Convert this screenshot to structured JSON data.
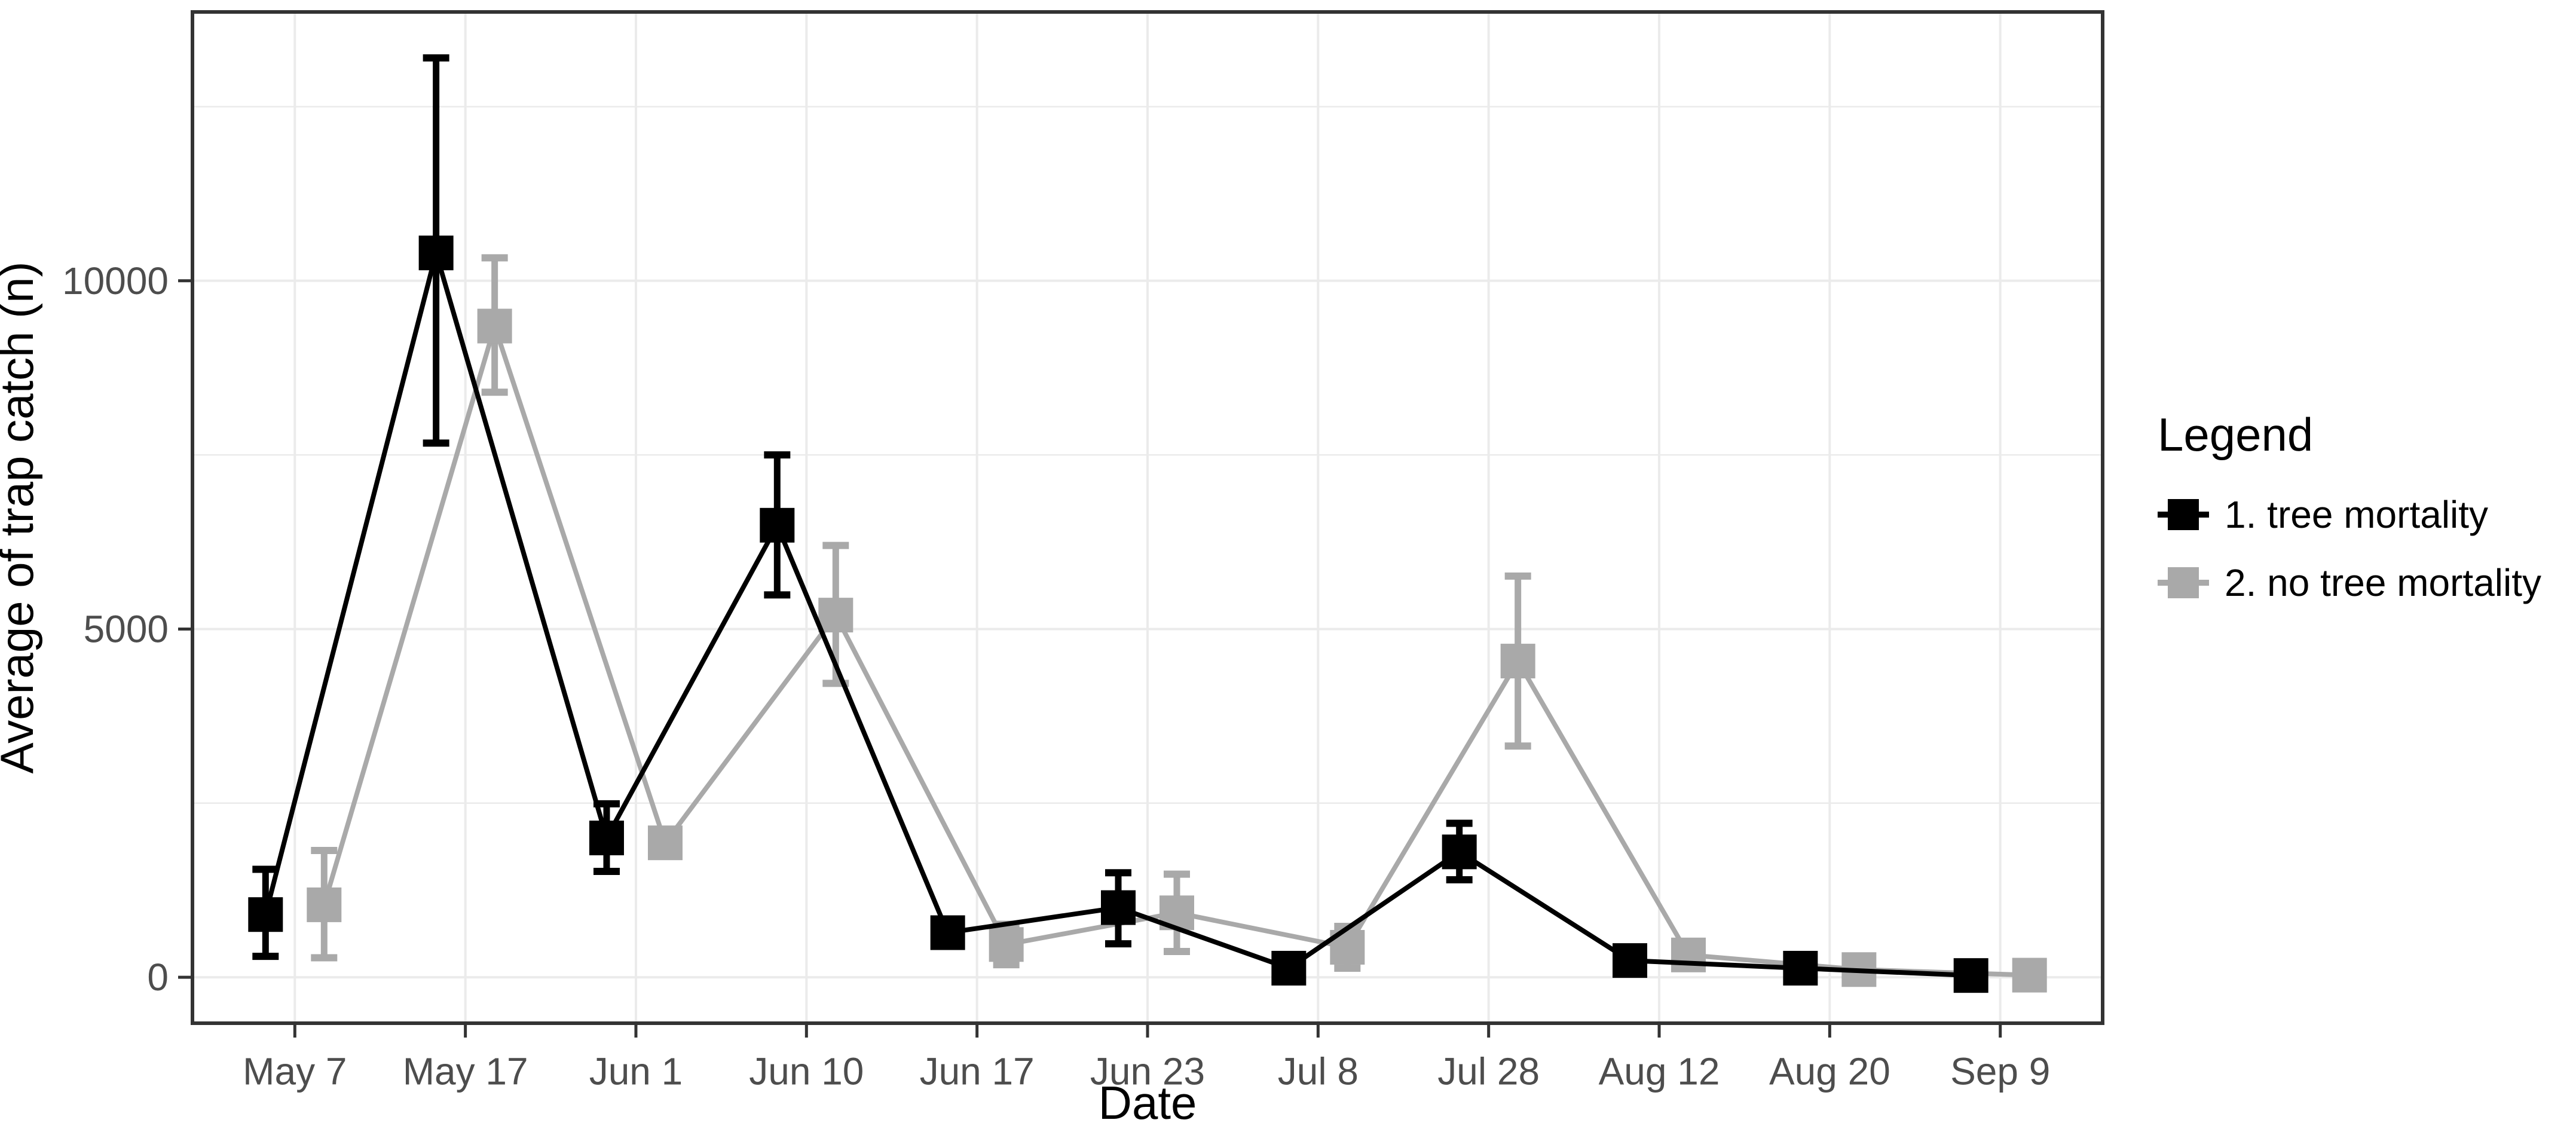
{
  "chart_data": {
    "type": "line",
    "title": "",
    "xlabel": "Date",
    "ylabel": "Average of trap catch (n)",
    "categories": [
      "May 7",
      "May 17",
      "Jun 1",
      "Jun 10",
      "Jun 17",
      "Jun 23",
      "Jul 8",
      "Jul 28",
      "Aug 12",
      "Aug 20",
      "Sep 9"
    ],
    "yticks": [
      0,
      5000,
      10000
    ],
    "minor_yticks": [
      2500,
      7500,
      12500
    ],
    "ylim": [
      -660,
      13860
    ],
    "grid": "major-and-minor-horizontal, major-vertical",
    "background": "white",
    "panel_border": true,
    "legend": {
      "title": "Legend",
      "position": "right"
    },
    "series": [
      {
        "name": "1. tree mortality",
        "color": "#000000",
        "marker": "square",
        "means": [
          900,
          10400,
          2000,
          6490,
          640,
          1000,
          130,
          1800,
          240,
          130,
          25
        ],
        "lower": [
          300,
          7670,
          1520,
          5490,
          null,
          480,
          null,
          1400,
          null,
          null,
          null
        ],
        "upper": [
          1550,
          13200,
          2490,
          7500,
          null,
          1500,
          null,
          2210,
          null,
          null,
          null
        ]
      },
      {
        "name": "2. no tree mortality",
        "color": "#a9a9a9",
        "marker": "square",
        "means": [
          1040,
          9350,
          1930,
          5200,
          470,
          925,
          430,
          4540,
          320,
          110,
          30
        ],
        "lower": [
          280,
          8400,
          null,
          4220,
          180,
          370,
          130,
          3320,
          null,
          null,
          null
        ],
        "upper": [
          1820,
          10330,
          null,
          6200,
          760,
          1480,
          730,
          5760,
          null,
          null,
          null
        ]
      }
    ],
    "colors": {
      "gridline": "#ebebeb",
      "panel_border": "#333333",
      "tick_mark": "#333333",
      "tick_label": "#4d4d4d",
      "axis_title": "#000000"
    }
  }
}
